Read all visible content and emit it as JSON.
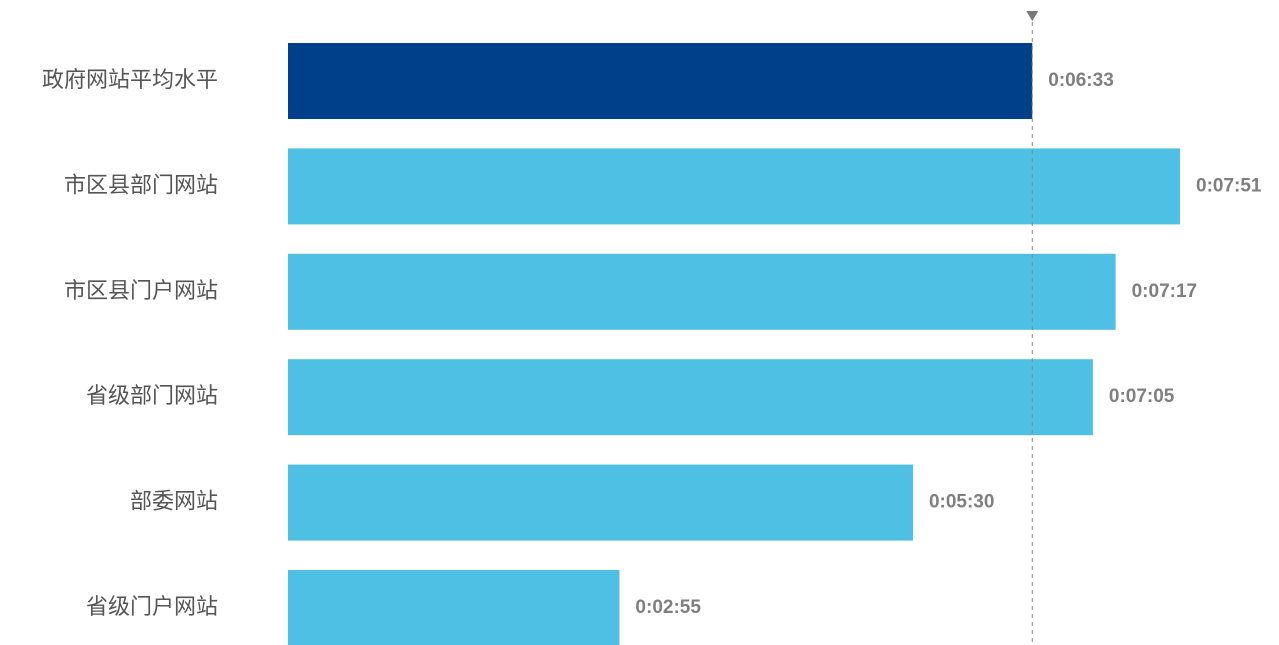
{
  "chart_data": {
    "type": "bar",
    "orientation": "horizontal",
    "categories": [
      "政府网站平均水平",
      "市区县部门网站",
      "市区县门户网站",
      "省级部门网站",
      "部委网站",
      "省级门户网站"
    ],
    "values": [
      393,
      471,
      437,
      425,
      330,
      175
    ],
    "value_labels": [
      "0:06:33",
      "0:07:51",
      "0:07:17",
      "0:07:05",
      "0:05:30",
      "0:02:55"
    ],
    "colors": [
      "#00408a",
      "#4dc0e3",
      "#4dc0e3",
      "#4dc0e3",
      "#4dc0e3",
      "#4dc0e3"
    ]
  }
}
